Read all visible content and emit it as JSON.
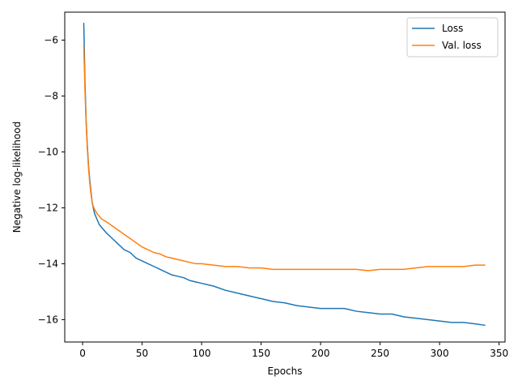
{
  "chart_data": {
    "type": "line",
    "title": "",
    "xlabel": "Epochs",
    "ylabel": "Negative log-likelihood",
    "xlim": [
      -15,
      355
    ],
    "ylim": [
      -16.8,
      -5.0
    ],
    "xticks": [
      0,
      50,
      100,
      150,
      200,
      250,
      300,
      350
    ],
    "yticks": [
      -6,
      -8,
      -10,
      -12,
      -14,
      -16
    ],
    "grid": false,
    "legend_position": "top-right",
    "series": [
      {
        "name": "Loss",
        "color": "#1f77b4",
        "x": [
          1,
          2,
          3,
          4,
          5,
          6,
          7,
          8,
          9,
          10,
          12,
          14,
          16,
          18,
          20,
          25,
          30,
          35,
          40,
          45,
          50,
          55,
          60,
          65,
          70,
          75,
          80,
          85,
          90,
          95,
          100,
          110,
          120,
          130,
          140,
          150,
          160,
          170,
          180,
          190,
          200,
          210,
          220,
          230,
          240,
          250,
          260,
          270,
          280,
          290,
          300,
          310,
          320,
          330,
          338
        ],
        "y": [
          -5.4,
          -7.5,
          -8.9,
          -9.8,
          -10.5,
          -11.0,
          -11.4,
          -11.8,
          -12.0,
          -12.2,
          -12.4,
          -12.6,
          -12.7,
          -12.8,
          -12.9,
          -13.1,
          -13.3,
          -13.5,
          -13.6,
          -13.8,
          -13.9,
          -14.0,
          -14.1,
          -14.2,
          -14.3,
          -14.4,
          -14.45,
          -14.5,
          -14.6,
          -14.65,
          -14.7,
          -14.8,
          -14.95,
          -15.05,
          -15.15,
          -15.25,
          -15.35,
          -15.4,
          -15.5,
          -15.55,
          -15.6,
          -15.6,
          -15.6,
          -15.7,
          -15.75,
          -15.8,
          -15.8,
          -15.9,
          -15.95,
          -16.0,
          -16.05,
          -16.1,
          -16.1,
          -16.15,
          -16.2
        ]
      },
      {
        "name": "Val. loss",
        "color": "#ff7f0e",
        "x": [
          1,
          2,
          3,
          4,
          5,
          6,
          7,
          8,
          9,
          10,
          12,
          14,
          16,
          18,
          20,
          25,
          30,
          35,
          40,
          45,
          50,
          55,
          60,
          65,
          70,
          75,
          80,
          85,
          90,
          95,
          100,
          110,
          120,
          130,
          140,
          150,
          160,
          170,
          180,
          190,
          200,
          210,
          220,
          230,
          240,
          250,
          260,
          270,
          280,
          290,
          300,
          310,
          320,
          330,
          338
        ],
        "y": [
          -6.2,
          -7.8,
          -9.0,
          -9.9,
          -10.6,
          -11.1,
          -11.5,
          -11.8,
          -11.95,
          -12.05,
          -12.2,
          -12.3,
          -12.4,
          -12.45,
          -12.5,
          -12.65,
          -12.8,
          -12.95,
          -13.1,
          -13.25,
          -13.4,
          -13.5,
          -13.6,
          -13.65,
          -13.75,
          -13.8,
          -13.85,
          -13.9,
          -13.95,
          -14.0,
          -14.0,
          -14.05,
          -14.1,
          -14.1,
          -14.15,
          -14.15,
          -14.2,
          -14.2,
          -14.2,
          -14.2,
          -14.2,
          -14.2,
          -14.2,
          -14.2,
          -14.25,
          -14.2,
          -14.2,
          -14.2,
          -14.15,
          -14.1,
          -14.1,
          -14.1,
          -14.1,
          -14.05,
          -14.05
        ]
      }
    ]
  }
}
